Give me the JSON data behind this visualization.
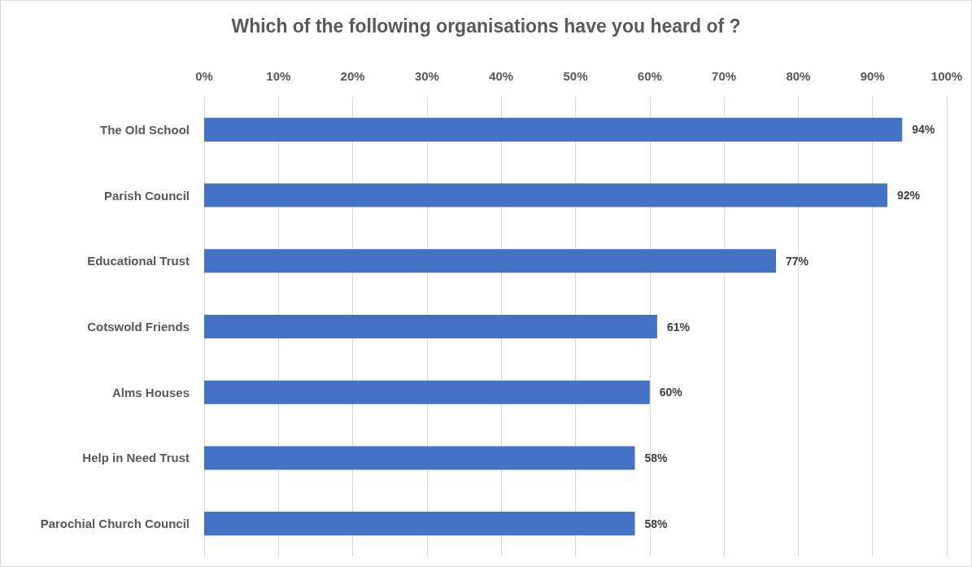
{
  "chart_data": {
    "type": "bar",
    "orientation": "horizontal",
    "title": "Which of the following organisations have you heard of ?",
    "categories": [
      "The Old School",
      "Parish Council",
      "Educational Trust",
      "Cotswold Friends",
      "Alms Houses",
      "Help in Need Trust",
      "Parochial Church Council"
    ],
    "values": [
      94,
      92,
      77,
      61,
      60,
      58,
      58
    ],
    "value_labels": [
      "94%",
      "92%",
      "77%",
      "61%",
      "60%",
      "58%",
      "58%"
    ],
    "color": "#4472c4",
    "xlim": [
      0,
      100
    ],
    "xticks": [
      {
        "value": 0,
        "label": "0%"
      },
      {
        "value": 10,
        "label": "10%"
      },
      {
        "value": 20,
        "label": "20%"
      },
      {
        "value": 30,
        "label": "30%"
      },
      {
        "value": 40,
        "label": "40%"
      },
      {
        "value": 50,
        "label": "50%"
      },
      {
        "value": 60,
        "label": "60%"
      },
      {
        "value": 70,
        "label": "70%"
      },
      {
        "value": 80,
        "label": "80%"
      },
      {
        "value": 90,
        "label": "90%"
      },
      {
        "value": 100,
        "label": "100%"
      }
    ],
    "grid": "x"
  }
}
